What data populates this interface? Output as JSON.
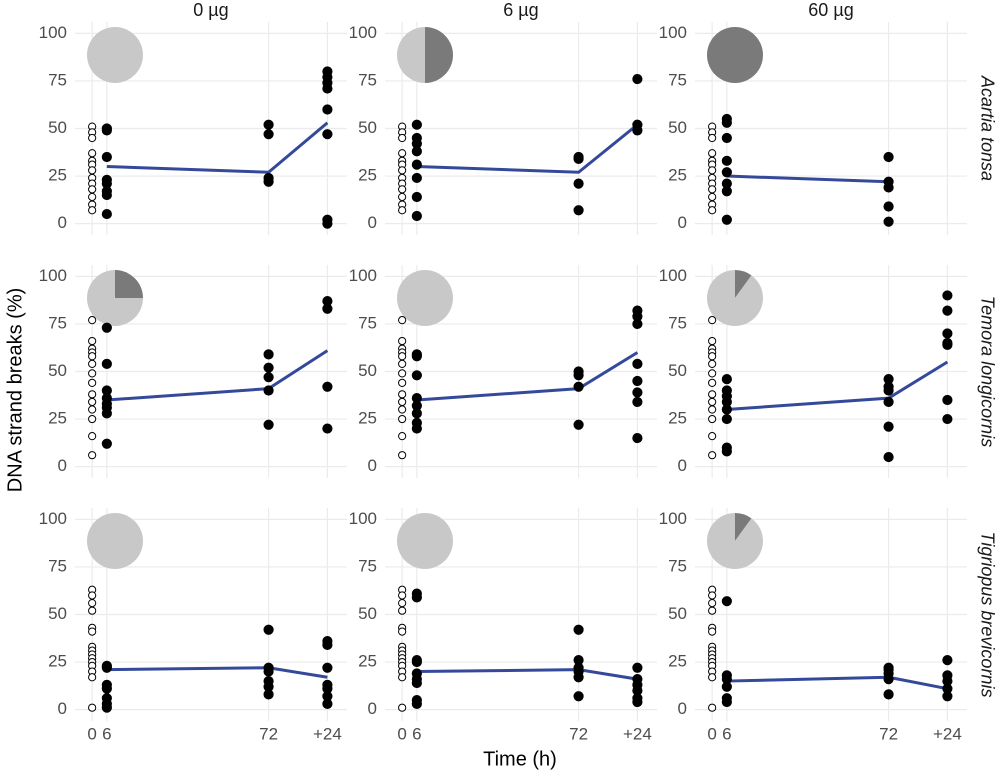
{
  "ylabel": "DNA strand breaks (%)",
  "xlabel": "Time (h)",
  "column_titles": [
    "0 µg",
    "6 µg",
    "60 µg"
  ],
  "row_titles": [
    "Acartia tonsa",
    "Temora longicornis",
    "Tigriopus brevicornis"
  ],
  "chart_data": [
    {
      "type": "scatter",
      "xlim": [
        -7,
        104
      ],
      "ylim": [
        -6,
        106
      ],
      "xticks": [
        0,
        6,
        72,
        {
          "value": 96,
          "label": "+24"
        }
      ],
      "yticks": [
        0,
        25,
        50,
        75,
        100
      ],
      "grid": true,
      "pie": {
        "values": [
          0,
          100
        ],
        "colors": [
          "#7a7a7a",
          "#c8c8c8"
        ]
      },
      "series": [
        {
          "marker": "open",
          "color": "#000000",
          "x": [
            0,
            0,
            0,
            0,
            0,
            0,
            0,
            0,
            0,
            0,
            0,
            0,
            0
          ],
          "values": [
            51,
            48,
            45,
            37,
            33,
            31,
            28,
            24,
            21,
            18,
            14,
            10,
            7
          ]
        },
        {
          "marker": "filled",
          "color": "#000000",
          "x": [
            6,
            6,
            6,
            6,
            6,
            6,
            6,
            6,
            72,
            72,
            72,
            72,
            96,
            96,
            96,
            96,
            96,
            96,
            96,
            96
          ],
          "values": [
            50,
            49,
            35,
            23,
            21,
            17,
            15,
            5,
            52,
            47,
            24,
            22,
            80,
            77,
            74,
            71,
            60,
            47,
            2,
            0
          ]
        }
      ],
      "line": {
        "color": "#34499a",
        "x": [
          6,
          72,
          96
        ],
        "values": [
          30,
          27,
          53
        ]
      }
    },
    {
      "type": "scatter",
      "xlim": [
        -7,
        104
      ],
      "ylim": [
        -6,
        106
      ],
      "xticks": [
        0,
        6,
        72,
        {
          "value": 96,
          "label": "+24"
        }
      ],
      "yticks": [
        0,
        25,
        50,
        75,
        100
      ],
      "grid": true,
      "pie": {
        "values": [
          50,
          50
        ],
        "colors": [
          "#7a7a7a",
          "#c8c8c8"
        ]
      },
      "series": [
        {
          "marker": "open",
          "color": "#000000",
          "x": [
            0,
            0,
            0,
            0,
            0,
            0,
            0,
            0,
            0,
            0,
            0,
            0,
            0
          ],
          "values": [
            51,
            48,
            45,
            37,
            33,
            31,
            28,
            24,
            21,
            18,
            14,
            10,
            7
          ]
        },
        {
          "marker": "filled",
          "color": "#000000",
          "x": [
            6,
            6,
            6,
            6,
            6,
            6,
            6,
            6,
            72,
            72,
            72,
            72,
            96,
            96,
            96
          ],
          "values": [
            52,
            45,
            42,
            38,
            31,
            24,
            14,
            4,
            35,
            34,
            21,
            7,
            76,
            52,
            49
          ]
        }
      ],
      "line": {
        "color": "#34499a",
        "x": [
          6,
          72,
          96
        ],
        "values": [
          30,
          27,
          52
        ]
      }
    },
    {
      "type": "scatter",
      "xlim": [
        -7,
        104
      ],
      "ylim": [
        -6,
        106
      ],
      "xticks": [
        0,
        6,
        72,
        {
          "value": 96,
          "label": "+24"
        }
      ],
      "yticks": [
        0,
        25,
        50,
        75,
        100
      ],
      "grid": true,
      "pie": {
        "values": [
          100,
          0
        ],
        "colors": [
          "#7a7a7a",
          "#c8c8c8"
        ]
      },
      "series": [
        {
          "marker": "open",
          "color": "#000000",
          "x": [
            0,
            0,
            0,
            0,
            0,
            0,
            0,
            0,
            0,
            0,
            0,
            0,
            0
          ],
          "values": [
            51,
            48,
            45,
            37,
            33,
            31,
            28,
            24,
            21,
            18,
            14,
            10,
            7
          ]
        },
        {
          "marker": "filled",
          "color": "#000000",
          "x": [
            6,
            6,
            6,
            6,
            6,
            6,
            6,
            6,
            72,
            72,
            72,
            72,
            72
          ],
          "values": [
            55,
            53,
            45,
            33,
            27,
            21,
            17,
            2,
            35,
            22,
            19,
            9,
            1
          ]
        }
      ],
      "line": {
        "color": "#34499a",
        "x": [
          6,
          72
        ],
        "values": [
          25,
          22
        ]
      }
    },
    {
      "type": "scatter",
      "xlim": [
        -7,
        104
      ],
      "ylim": [
        -6,
        106
      ],
      "xticks": [
        0,
        6,
        72,
        {
          "value": 96,
          "label": "+24"
        }
      ],
      "yticks": [
        0,
        25,
        50,
        75,
        100
      ],
      "grid": true,
      "pie": {
        "values": [
          25,
          75
        ],
        "colors": [
          "#7a7a7a",
          "#c8c8c8"
        ]
      },
      "series": [
        {
          "marker": "open",
          "color": "#000000",
          "x": [
            0,
            0,
            0,
            0,
            0,
            0,
            0,
            0,
            0,
            0,
            0,
            0,
            0,
            0
          ],
          "values": [
            77,
            66,
            62,
            60,
            58,
            54,
            49,
            44,
            38,
            34,
            30,
            25,
            16,
            6
          ]
        },
        {
          "marker": "filled",
          "color": "#000000",
          "x": [
            6,
            6,
            6,
            6,
            6,
            6,
            6,
            6,
            72,
            72,
            72,
            72,
            72,
            96,
            96,
            96,
            96
          ],
          "values": [
            73,
            54,
            40,
            36,
            33,
            31,
            28,
            12,
            59,
            52,
            47,
            40,
            22,
            87,
            83,
            42,
            20
          ]
        }
      ],
      "line": {
        "color": "#34499a",
        "x": [
          6,
          72,
          96
        ],
        "values": [
          35,
          41,
          61
        ]
      }
    },
    {
      "type": "scatter",
      "xlim": [
        -7,
        104
      ],
      "ylim": [
        -6,
        106
      ],
      "xticks": [
        0,
        6,
        72,
        {
          "value": 96,
          "label": "+24"
        }
      ],
      "yticks": [
        0,
        25,
        50,
        75,
        100
      ],
      "grid": true,
      "pie": {
        "values": [
          0,
          100
        ],
        "colors": [
          "#7a7a7a",
          "#c8c8c8"
        ]
      },
      "series": [
        {
          "marker": "open",
          "color": "#000000",
          "x": [
            0,
            0,
            0,
            0,
            0,
            0,
            0,
            0,
            0,
            0,
            0,
            0,
            0,
            0
          ],
          "values": [
            77,
            66,
            62,
            60,
            58,
            54,
            49,
            44,
            38,
            34,
            30,
            25,
            16,
            6
          ]
        },
        {
          "marker": "filled",
          "color": "#000000",
          "x": [
            6,
            6,
            6,
            6,
            6,
            6,
            6,
            6,
            72,
            72,
            72,
            72,
            96,
            96,
            96,
            96,
            96,
            96,
            96,
            96
          ],
          "values": [
            59,
            58,
            48,
            36,
            32,
            28,
            23,
            20,
            50,
            48,
            42,
            22,
            82,
            79,
            75,
            54,
            45,
            39,
            34,
            15
          ]
        }
      ],
      "line": {
        "color": "#34499a",
        "x": [
          6,
          72,
          96
        ],
        "values": [
          35,
          41,
          60
        ]
      }
    },
    {
      "type": "scatter",
      "xlim": [
        -7,
        104
      ],
      "ylim": [
        -6,
        106
      ],
      "xticks": [
        0,
        6,
        72,
        {
          "value": 96,
          "label": "+24"
        }
      ],
      "yticks": [
        0,
        25,
        50,
        75,
        100
      ],
      "grid": true,
      "pie": {
        "values": [
          10,
          90
        ],
        "colors": [
          "#7a7a7a",
          "#c8c8c8"
        ]
      },
      "series": [
        {
          "marker": "open",
          "color": "#000000",
          "x": [
            0,
            0,
            0,
            0,
            0,
            0,
            0,
            0,
            0,
            0,
            0,
            0,
            0,
            0
          ],
          "values": [
            77,
            66,
            62,
            60,
            58,
            54,
            49,
            44,
            38,
            34,
            30,
            25,
            16,
            6
          ]
        },
        {
          "marker": "filled",
          "color": "#000000",
          "x": [
            6,
            6,
            6,
            6,
            6,
            6,
            6,
            6,
            72,
            72,
            72,
            72,
            72,
            72,
            96,
            96,
            96,
            96,
            96,
            96,
            96
          ],
          "values": [
            46,
            40,
            37,
            34,
            30,
            25,
            10,
            8,
            46,
            42,
            40,
            34,
            21,
            5,
            90,
            82,
            70,
            65,
            64,
            35,
            25
          ]
        }
      ],
      "line": {
        "color": "#34499a",
        "x": [
          6,
          72,
          96
        ],
        "values": [
          30,
          36,
          55
        ]
      }
    },
    {
      "type": "scatter",
      "xlim": [
        -7,
        104
      ],
      "ylim": [
        -6,
        106
      ],
      "xticks": [
        0,
        6,
        72,
        {
          "value": 96,
          "label": "+24"
        }
      ],
      "yticks": [
        0,
        25,
        50,
        75,
        100
      ],
      "grid": true,
      "pie": {
        "values": [
          0,
          100
        ],
        "colors": [
          "#7a7a7a",
          "#c8c8c8"
        ]
      },
      "series": [
        {
          "marker": "open",
          "color": "#000000",
          "x": [
            0,
            0,
            0,
            0,
            0,
            0,
            0,
            0,
            0,
            0,
            0,
            0,
            0,
            0,
            0
          ],
          "values": [
            63,
            60,
            56,
            52,
            43,
            41,
            33,
            31,
            29,
            27,
            25,
            23,
            20,
            17,
            1
          ]
        },
        {
          "marker": "filled",
          "color": "#000000",
          "x": [
            6,
            6,
            6,
            6,
            6,
            6,
            6,
            72,
            72,
            72,
            72,
            72,
            72,
            96,
            96,
            96,
            96,
            96,
            96,
            96
          ],
          "values": [
            23,
            22,
            13,
            11,
            6,
            3,
            1,
            42,
            22,
            20,
            15,
            12,
            8,
            36,
            34,
            22,
            13,
            11,
            7,
            3
          ]
        }
      ],
      "line": {
        "color": "#34499a",
        "x": [
          6,
          72,
          96
        ],
        "values": [
          21,
          22,
          17
        ]
      }
    },
    {
      "type": "scatter",
      "xlim": [
        -7,
        104
      ],
      "ylim": [
        -6,
        106
      ],
      "xticks": [
        0,
        6,
        72,
        {
          "value": 96,
          "label": "+24"
        }
      ],
      "yticks": [
        0,
        25,
        50,
        75,
        100
      ],
      "grid": true,
      "pie": {
        "values": [
          0,
          100
        ],
        "colors": [
          "#7a7a7a",
          "#c8c8c8"
        ]
      },
      "series": [
        {
          "marker": "open",
          "color": "#000000",
          "x": [
            0,
            0,
            0,
            0,
            0,
            0,
            0,
            0,
            0,
            0,
            0,
            0,
            0,
            0,
            0
          ],
          "values": [
            63,
            60,
            56,
            52,
            43,
            41,
            33,
            31,
            29,
            27,
            25,
            23,
            20,
            17,
            1
          ]
        },
        {
          "marker": "filled",
          "color": "#000000",
          "x": [
            6,
            6,
            6,
            6,
            6,
            6,
            6,
            6,
            6,
            72,
            72,
            72,
            72,
            72,
            72,
            96,
            96,
            96,
            96,
            96,
            96
          ],
          "values": [
            61,
            59,
            26,
            25,
            19,
            16,
            14,
            5,
            3,
            42,
            26,
            22,
            20,
            17,
            7,
            22,
            16,
            13,
            10,
            6,
            4
          ]
        }
      ],
      "line": {
        "color": "#34499a",
        "x": [
          6,
          72,
          96
        ],
        "values": [
          20,
          21,
          16
        ]
      }
    },
    {
      "type": "scatter",
      "xlim": [
        -7,
        104
      ],
      "ylim": [
        -6,
        106
      ],
      "xticks": [
        0,
        6,
        72,
        {
          "value": 96,
          "label": "+24"
        }
      ],
      "yticks": [
        0,
        25,
        50,
        75,
        100
      ],
      "grid": true,
      "pie": {
        "values": [
          10,
          90
        ],
        "colors": [
          "#7a7a7a",
          "#c8c8c8"
        ]
      },
      "series": [
        {
          "marker": "open",
          "color": "#000000",
          "x": [
            0,
            0,
            0,
            0,
            0,
            0,
            0,
            0,
            0,
            0,
            0,
            0,
            0,
            0,
            0
          ],
          "values": [
            63,
            60,
            56,
            52,
            43,
            41,
            33,
            31,
            29,
            27,
            25,
            23,
            20,
            17,
            1
          ]
        },
        {
          "marker": "filled",
          "color": "#000000",
          "x": [
            6,
            6,
            6,
            6,
            6,
            6,
            72,
            72,
            72,
            72,
            72,
            96,
            96,
            96,
            96,
            96
          ],
          "values": [
            57,
            18,
            16,
            12,
            6,
            4,
            22,
            21,
            19,
            16,
            8,
            26,
            18,
            15,
            11,
            7
          ]
        }
      ],
      "line": {
        "color": "#34499a",
        "x": [
          6,
          72,
          96
        ],
        "values": [
          15,
          17,
          11
        ]
      }
    }
  ]
}
